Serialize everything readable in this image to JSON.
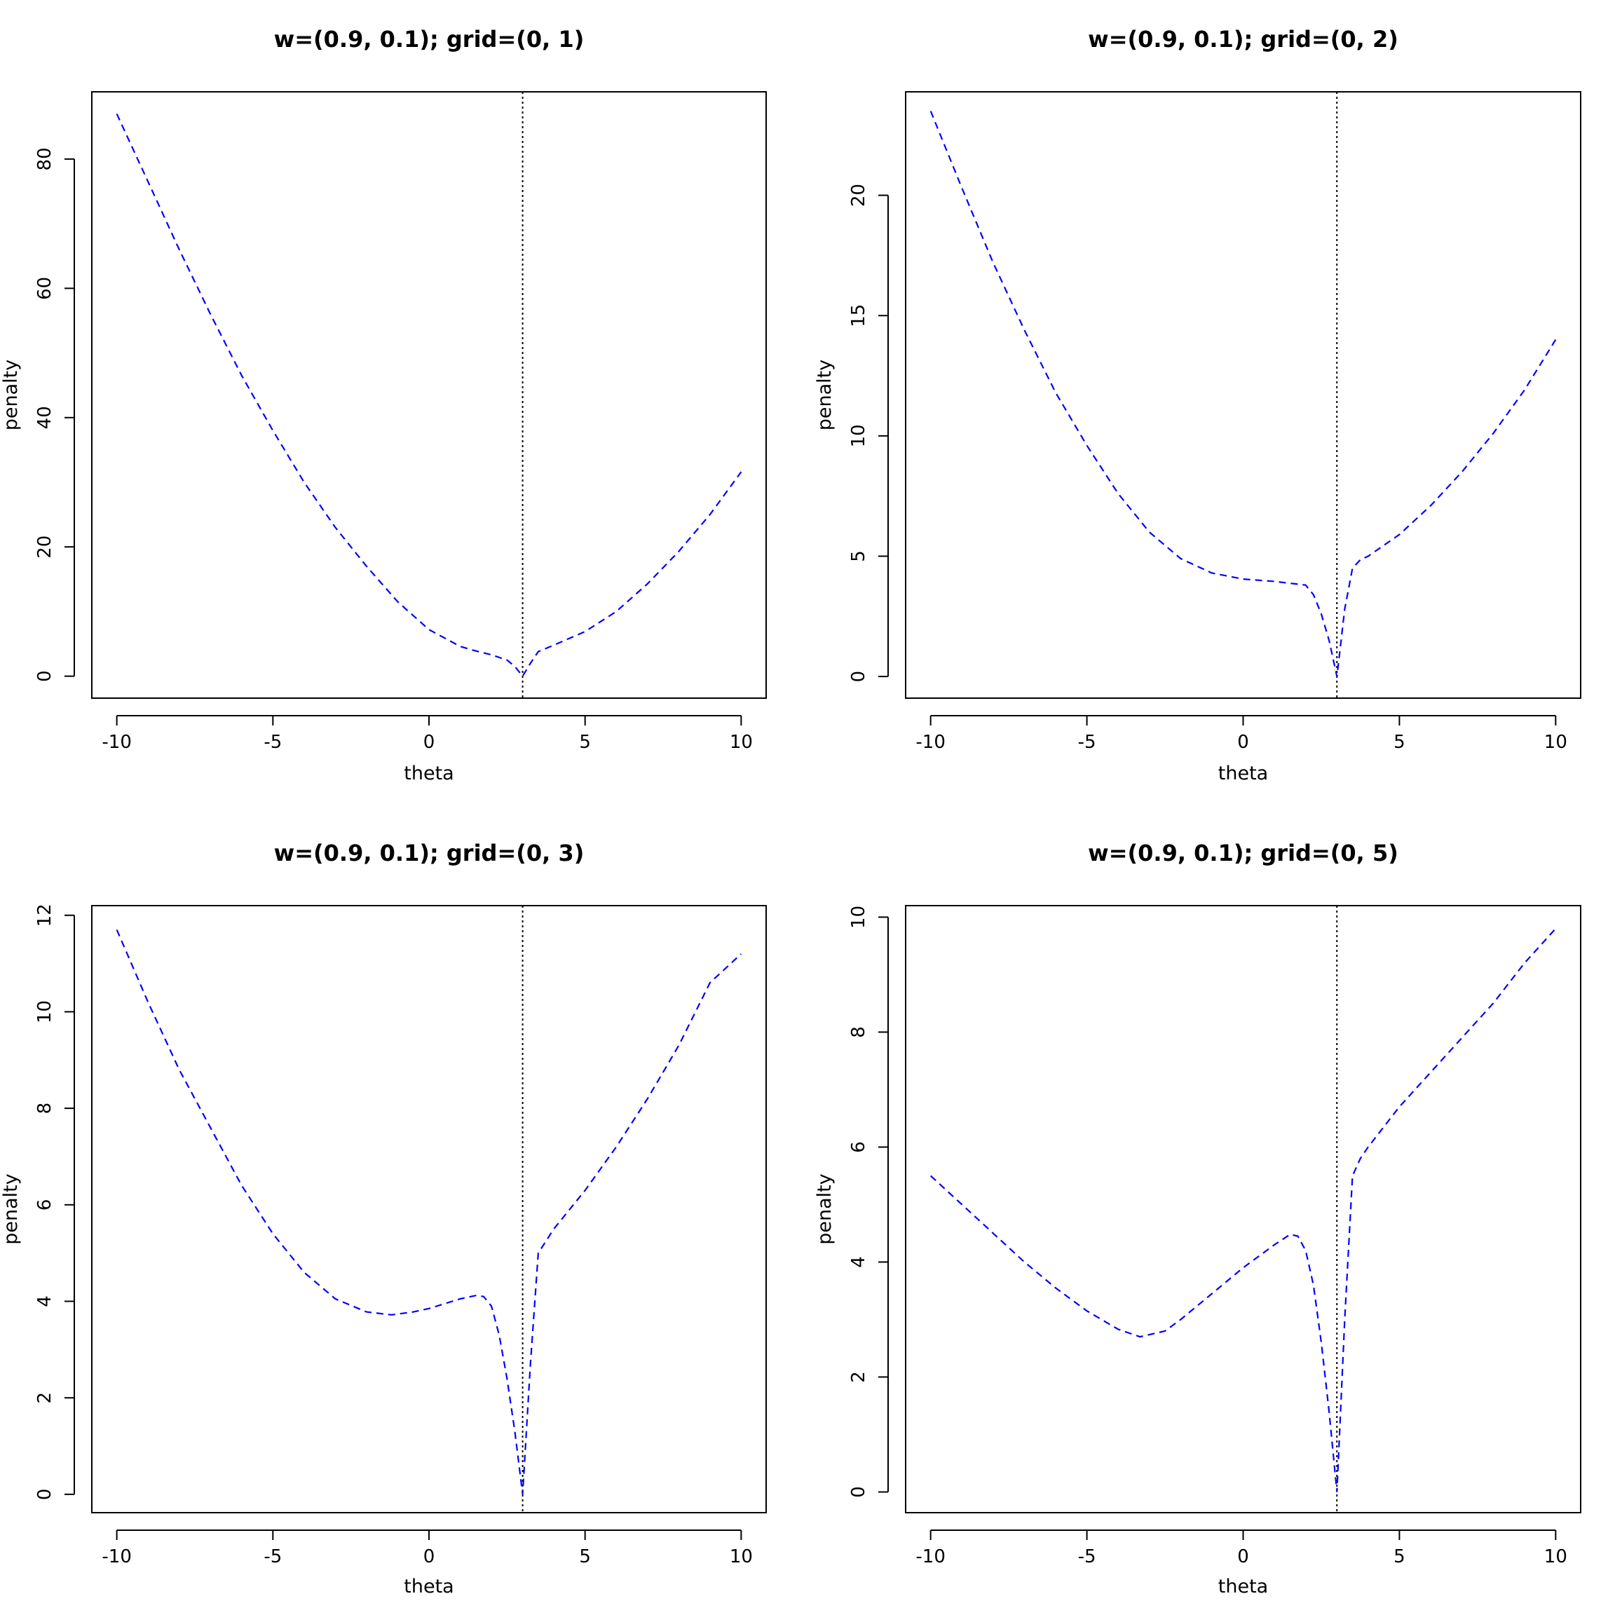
{
  "colors": {
    "series": "#0000FF",
    "reference_line": "#000000",
    "axes": "#000000",
    "background": "#FFFFFF"
  },
  "chart_data": [
    {
      "type": "line",
      "title": "w=(0.9, 0.1); grid=(0, 1)",
      "xlabel": "theta",
      "ylabel": "penalty",
      "xlim": [
        -10.8,
        10.8
      ],
      "ylim": [
        -3.4,
        90.4
      ],
      "xticks": [
        -10,
        -5,
        0,
        5,
        10
      ],
      "yticks": [
        0,
        20,
        40,
        60,
        80
      ],
      "grid": false,
      "reference_line": {
        "x": 3
      },
      "series": [
        {
          "style": "dashed",
          "x": [
            -10,
            -9,
            -8,
            -7,
            -6,
            -5,
            -4,
            -3,
            -2,
            -1,
            0,
            1,
            1.5,
            2,
            2.5,
            2.75,
            3,
            3.25,
            3.5,
            4,
            5,
            6,
            7,
            8,
            9,
            10
          ],
          "y": [
            87,
            76.5,
            66,
            56,
            46.5,
            38,
            30,
            23,
            17,
            11.5,
            7.2,
            4.6,
            3.9,
            3.3,
            2.5,
            1.5,
            0,
            2,
            3.8,
            4.8,
            6.9,
            10,
            14.3,
            19.3,
            25,
            31.6
          ]
        }
      ]
    },
    {
      "type": "line",
      "title": "w=(0.9, 0.1); grid=(0, 2)",
      "xlabel": "theta",
      "ylabel": "penalty",
      "xlim": [
        -10.8,
        10.8
      ],
      "ylim": [
        -0.9,
        24.3
      ],
      "xticks": [
        -10,
        -5,
        0,
        5,
        10
      ],
      "yticks": [
        0,
        5,
        10,
        15,
        20
      ],
      "grid": false,
      "reference_line": {
        "x": 3
      },
      "series": [
        {
          "style": "dashed",
          "x": [
            -10,
            -9,
            -8,
            -7,
            -6,
            -5,
            -4,
            -3,
            -2,
            -1,
            0,
            1,
            2,
            2.25,
            2.5,
            2.75,
            3,
            3.25,
            3.5,
            3.75,
            4,
            5,
            6,
            7,
            8,
            9,
            10
          ],
          "y": [
            23.5,
            20.3,
            17.2,
            14.4,
            11.8,
            9.6,
            7.6,
            6,
            4.9,
            4.3,
            4.05,
            3.95,
            3.8,
            3.4,
            2.6,
            1.5,
            0,
            2.8,
            4.5,
            4.85,
            5,
            5.9,
            7.1,
            8.5,
            10.1,
            11.9,
            14
          ]
        }
      ]
    },
    {
      "type": "line",
      "title": "w=(0.9, 0.1); grid=(0, 3)",
      "xlabel": "theta",
      "ylabel": "penalty",
      "xlim": [
        -10.8,
        10.8
      ],
      "ylim": [
        -0.38,
        12.2
      ],
      "xticks": [
        -10,
        -5,
        0,
        5,
        10
      ],
      "yticks": [
        0,
        2,
        4,
        6,
        8,
        10,
        12
      ],
      "grid": false,
      "reference_line": {
        "x": 3
      },
      "series": [
        {
          "style": "dashed",
          "x": [
            -10,
            -9,
            -8,
            -7,
            -6,
            -5,
            -4,
            -3,
            -2,
            -1.2,
            -0.5,
            0,
            0.5,
            1,
            1.5,
            1.75,
            2,
            2.25,
            2.5,
            2.75,
            3,
            3.25,
            3.5,
            4,
            5,
            6,
            7,
            8,
            9,
            10
          ],
          "y": [
            11.7,
            10.2,
            8.8,
            7.6,
            6.4,
            5.4,
            4.6,
            4.05,
            3.78,
            3.72,
            3.78,
            3.85,
            3.95,
            4.05,
            4.12,
            4.1,
            3.9,
            3.3,
            2.4,
            1.3,
            0,
            2.7,
            5,
            5.5,
            6.3,
            7.2,
            8.2,
            9.3,
            10.6,
            11.2
          ]
        }
      ]
    },
    {
      "type": "line",
      "title": "w=(0.9, 0.1); grid=(0, 5)",
      "xlabel": "theta",
      "ylabel": "penalty",
      "xlim": [
        -10.8,
        10.8
      ],
      "ylim": [
        -0.36,
        10.2
      ],
      "xticks": [
        -10,
        -5,
        0,
        5,
        10
      ],
      "yticks": [
        0,
        2,
        4,
        6,
        8,
        10
      ],
      "grid": false,
      "reference_line": {
        "x": 3
      },
      "series": [
        {
          "style": "dashed",
          "x": [
            -10,
            -9,
            -8,
            -7,
            -6,
            -5,
            -4,
            -3.3,
            -2.5,
            -2,
            -1,
            0,
            1,
            1.5,
            1.75,
            2,
            2.25,
            2.5,
            2.75,
            3,
            3.25,
            3.5,
            3.75,
            4,
            5,
            6,
            7,
            8,
            9,
            10
          ],
          "y": [
            5.5,
            5,
            4.5,
            4,
            3.55,
            3.15,
            2.83,
            2.7,
            2.8,
            3,
            3.45,
            3.9,
            4.3,
            4.48,
            4.45,
            4.2,
            3.6,
            2.6,
            1.4,
            0,
            3,
            5.5,
            5.8,
            6,
            6.7,
            7.3,
            7.9,
            8.5,
            9.2,
            9.8
          ]
        }
      ]
    }
  ]
}
